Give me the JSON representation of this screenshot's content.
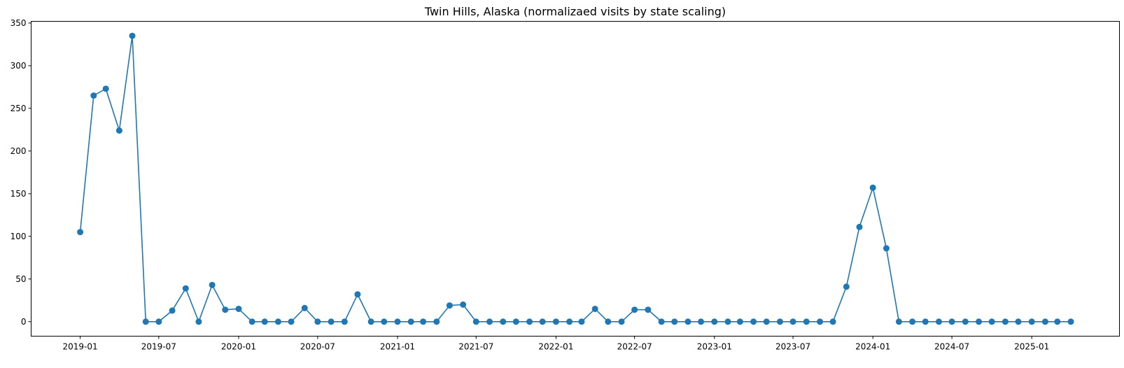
{
  "chart_data": {
    "type": "line",
    "title": "Twin Hills, Alaska (normalizaed visits by state scaling)",
    "xlabel": "",
    "ylabel": "",
    "x_start": "2019-01",
    "x_end": "2025-04",
    "xlim": [
      "2018-09-10",
      "2025-07-22"
    ],
    "ylim": [
      -17,
      352
    ],
    "xticks": [
      "2019-01",
      "2019-07",
      "2020-01",
      "2020-07",
      "2021-01",
      "2021-07",
      "2022-01",
      "2022-07",
      "2023-01",
      "2023-07",
      "2024-01",
      "2024-07",
      "2025-01"
    ],
    "yticks": [
      0,
      50,
      100,
      150,
      200,
      250,
      300,
      350
    ],
    "grid": false,
    "series": [
      {
        "color": "#1f77b4",
        "marker": "circle",
        "values": [
          105,
          265,
          273,
          224,
          335,
          0,
          0,
          13,
          39,
          0,
          43,
          14,
          15,
          0,
          0,
          0,
          0,
          16,
          0,
          0,
          0,
          32,
          0,
          0,
          0,
          0,
          0,
          0,
          19,
          20,
          0,
          0,
          0,
          0,
          0,
          0,
          0,
          0,
          0,
          15,
          0,
          0,
          14,
          14,
          0,
          0,
          0,
          0,
          0,
          0,
          0,
          0,
          0,
          0,
          0,
          0,
          0,
          0,
          41,
          111,
          157,
          86,
          0,
          0,
          0,
          0,
          0,
          0,
          0,
          0,
          0,
          0,
          0,
          0,
          0,
          0
        ]
      }
    ]
  }
}
